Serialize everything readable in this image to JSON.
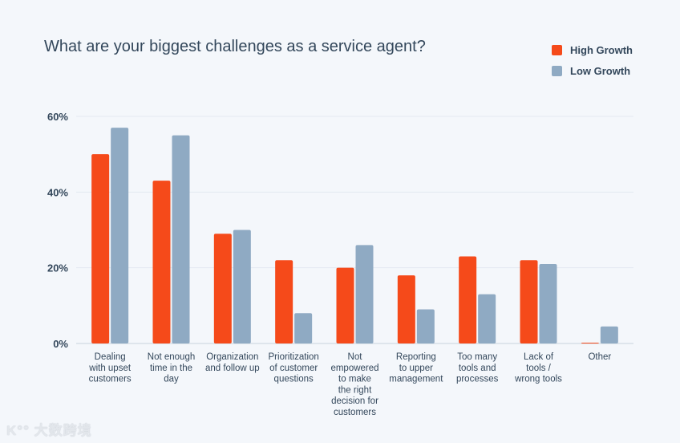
{
  "chart_data": {
    "type": "bar",
    "title": "What are your biggest challenges as a service agent?",
    "xlabel": "",
    "ylabel": "",
    "ylim": [
      0,
      60
    ],
    "yticks": [
      "0%",
      "20%",
      "40%",
      "60%"
    ],
    "ytick_values": [
      0,
      20,
      40,
      60
    ],
    "grid": true,
    "legend_position": "top-right",
    "categories": [
      "Dealing with upset customers",
      "Not enough time in the day",
      "Organization and follow up",
      "Prioritization of customer questions",
      "Not empowered to make the right decision for customers",
      "Reporting to upper management",
      "Too many tools and processes",
      "Lack of tools / wrong tools",
      "Other"
    ],
    "category_lines": [
      [
        "Dealing",
        "with upset",
        "customers"
      ],
      [
        "Not enough",
        "time in the",
        "day"
      ],
      [
        "Organization",
        "and follow up"
      ],
      [
        "Prioritization",
        "of customer",
        "questions"
      ],
      [
        "Not",
        "empowered",
        "to make",
        "the right",
        "decision for",
        "customers"
      ],
      [
        "Reporting",
        "to upper",
        "management"
      ],
      [
        "Too many",
        "tools and",
        "processes"
      ],
      [
        "Lack of",
        "tools /",
        "wrong tools"
      ],
      [
        "Other"
      ]
    ],
    "series": [
      {
        "name": "High Growth",
        "color": "#f54a1a",
        "values": [
          50,
          43,
          29,
          22,
          20,
          18,
          23,
          22,
          0
        ]
      },
      {
        "name": "Low Growth",
        "color": "#8faac3",
        "values": [
          57,
          55,
          30,
          8,
          26,
          9,
          13,
          21,
          4.5
        ]
      }
    ]
  },
  "watermark": "大数跨境"
}
